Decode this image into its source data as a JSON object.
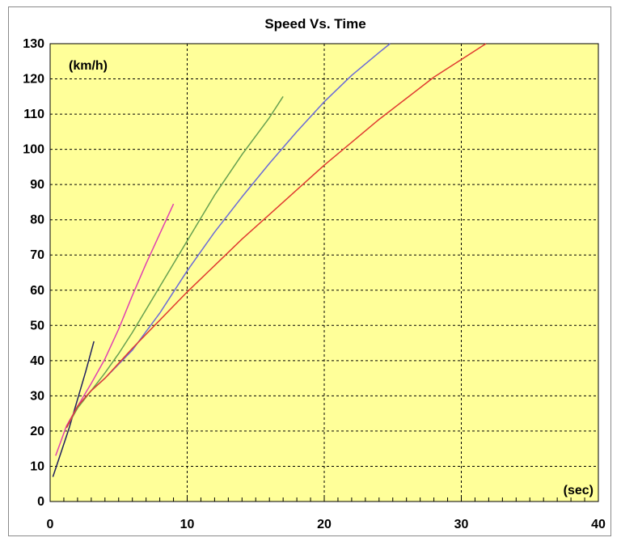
{
  "chart_data": {
    "type": "line",
    "title": "Speed Vs. Time",
    "xlabel": "(sec)",
    "ylabel": "(km/h)",
    "xlim": [
      0,
      40
    ],
    "ylim": [
      0,
      130
    ],
    "x_ticks": [
      0,
      10,
      20,
      30,
      40
    ],
    "y_ticks": [
      0,
      10,
      20,
      30,
      40,
      50,
      60,
      70,
      80,
      90,
      100,
      110,
      120,
      130
    ],
    "grid": true,
    "plot_background": "#FFFF99",
    "series": [
      {
        "color": "#1f1f5f",
        "x": [
          0.2,
          0.8,
          1.4,
          2.0,
          2.6,
          3.2
        ],
        "y": [
          7,
          14,
          21,
          29,
          37,
          45.5
        ]
      },
      {
        "color": "#e040b0",
        "x": [
          0.4,
          1.2,
          2.0,
          3.0,
          4.0,
          5.0,
          6.0,
          7.0,
          8.0,
          9.0
        ],
        "y": [
          13,
          21.5,
          27,
          33.5,
          40.5,
          49,
          58.5,
          67.5,
          76,
          84.5
        ]
      },
      {
        "color": "#66a050",
        "x": [
          1.2,
          2.0,
          3.0,
          4.0,
          5.0,
          6.0,
          8.0,
          10.0,
          12.0,
          14.0,
          16.0,
          17.0
        ],
        "y": [
          21,
          26.5,
          31.5,
          36.5,
          42,
          48,
          61,
          74,
          87,
          98.5,
          109,
          115
        ]
      },
      {
        "color": "#6a6ad8",
        "x": [
          1.2,
          2.0,
          3.0,
          4.0,
          6.0,
          8.0,
          10.0,
          12.0,
          14.0,
          16.0,
          18.0,
          20.0,
          22.0,
          24.0,
          24.8
        ],
        "y": [
          21,
          27,
          31.5,
          35,
          43,
          53.5,
          65.5,
          76.5,
          86.5,
          96,
          105,
          113.5,
          121,
          127.5,
          130
        ]
      },
      {
        "color": "#e03a30",
        "x": [
          1.2,
          2.0,
          3.0,
          4.0,
          6.0,
          8.0,
          10.0,
          12.0,
          14.0,
          16.0,
          18.0,
          20.0,
          22.0,
          24.0,
          26.0,
          28.0,
          30.0,
          31.8
        ],
        "y": [
          21,
          27,
          31.5,
          35,
          43.5,
          51.5,
          59.5,
          67,
          74.5,
          81.5,
          88.5,
          95.5,
          102,
          108.5,
          114.5,
          120.5,
          125.5,
          130
        ]
      }
    ]
  }
}
